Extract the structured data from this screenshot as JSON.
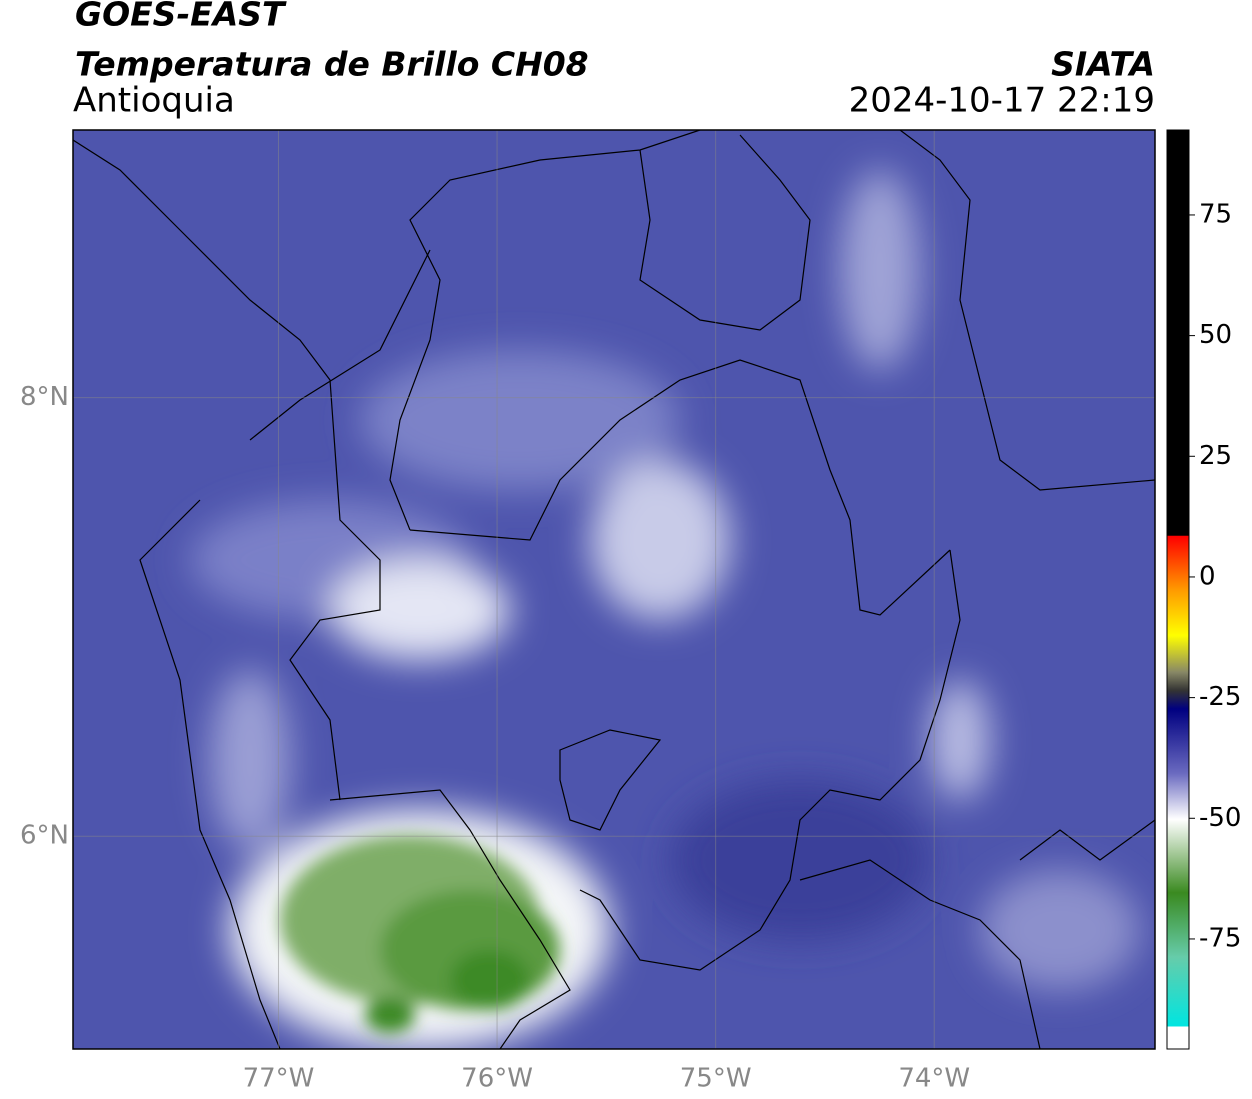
{
  "header": {
    "title": "GOES-EAST",
    "subtitle": "Temperatura de Brillo CH08",
    "region": "Antioquia",
    "source": "SIATA",
    "timestamp": "2024-10-17 22:19"
  },
  "map": {
    "lon_range": [
      -77.94,
      -72.99
    ],
    "lat_range": [
      5.03,
      9.22
    ],
    "lon_ticks": [
      {
        "value": -77,
        "label": "77°W"
      },
      {
        "value": -76,
        "label": "76°W"
      },
      {
        "value": -75,
        "label": "75°W"
      },
      {
        "value": -74,
        "label": "74°W"
      }
    ],
    "lat_ticks": [
      {
        "value": 8,
        "label": "8°N"
      },
      {
        "value": 6,
        "label": "6°N"
      }
    ]
  },
  "colorbar": {
    "range": [
      -97.8,
      92.6
    ],
    "ticks": [
      75,
      50,
      25,
      0,
      -25,
      -50,
      -75
    ]
  }
}
